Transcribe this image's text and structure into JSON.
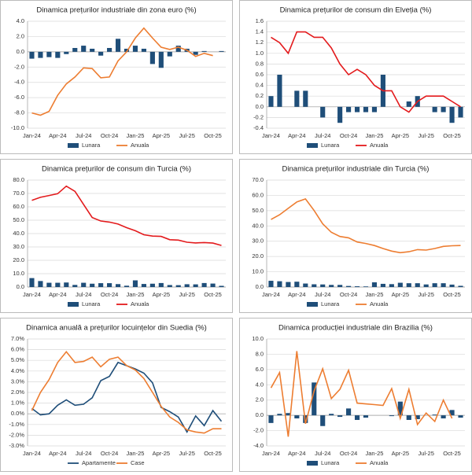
{
  "chart_data": [
    {
      "type": "combo",
      "title": "Dinamica prețurilor industriale din zona euro (%)",
      "categories": [
        "Jan-24",
        null,
        null,
        "Apr-24",
        null,
        null,
        "Jul-24",
        null,
        null,
        "Oct-24",
        null,
        null,
        "Jan-25",
        null,
        null,
        "Apr-25",
        null,
        null,
        "Jul-25",
        null,
        null,
        "Oct-25",
        null
      ],
      "series": [
        {
          "name": "Lunara",
          "kind": "bar",
          "color": "#1f4e79",
          "values": [
            -0.9,
            -0.8,
            -0.7,
            -0.8,
            -0.3,
            0.5,
            0.8,
            0.4,
            -0.5,
            0.5,
            1.7,
            0.4,
            0.8,
            0.4,
            -1.6,
            -2.1,
            -0.6,
            0.8,
            0.4,
            -0.4,
            0.1,
            0.0,
            0.1
          ]
        },
        {
          "name": "Anuala",
          "kind": "line",
          "color": "#ed7d31",
          "values": [
            -8.0,
            -8.3,
            -7.8,
            -5.7,
            -4.2,
            -3.3,
            -2.1,
            -2.2,
            -3.4,
            -3.3,
            -1.2,
            0.0,
            1.8,
            3.1,
            1.8,
            0.6,
            0.3,
            0.6,
            0.2,
            -0.6,
            -0.2,
            -0.5,
            null
          ]
        }
      ],
      "ylim": [
        -10,
        4
      ],
      "yticks": [
        {
          "value": -10,
          "label": "-10.0"
        },
        {
          "value": -8,
          "label": "-8.0"
        },
        {
          "value": -6,
          "label": "-6.0"
        },
        {
          "value": -4,
          "label": "-4.0"
        },
        {
          "value": -2,
          "label": "-2.0"
        },
        {
          "value": 0,
          "label": "0.0"
        },
        {
          "value": 2,
          "label": "2.0"
        },
        {
          "value": 4,
          "label": "4.0"
        }
      ],
      "grid": true,
      "legend": "bottom"
    },
    {
      "type": "combo",
      "title": "Dinamica prețurilor de consum din Elveția (%)",
      "categories": [
        "Jan-24",
        null,
        null,
        "Apr-24",
        null,
        null,
        "Jul-24",
        null,
        null,
        "Oct-24",
        null,
        null,
        "Jan-25",
        null,
        null,
        "Apr-25",
        null,
        null,
        "Jul-25",
        null,
        null,
        "Oct-25",
        null
      ],
      "series": [
        {
          "name": "Lunara",
          "kind": "bar",
          "color": "#1f4e79",
          "values": [
            0.2,
            0.6,
            0.0,
            0.3,
            0.3,
            0.0,
            -0.2,
            0.0,
            -0.3,
            -0.1,
            -0.1,
            -0.1,
            -0.1,
            0.6,
            0.0,
            0.0,
            0.1,
            0.2,
            0.0,
            -0.1,
            -0.1,
            -0.3,
            -0.2
          ]
        },
        {
          "name": "Anuala",
          "kind": "line",
          "color": "#e31a1c",
          "values": [
            1.3,
            1.2,
            1.0,
            1.4,
            1.4,
            1.3,
            1.3,
            1.1,
            0.8,
            0.6,
            0.7,
            0.6,
            0.4,
            0.3,
            0.3,
            0.0,
            -0.1,
            0.1,
            0.2,
            0.2,
            0.2,
            0.1,
            0.0
          ]
        }
      ],
      "ylim": [
        -0.4,
        1.6
      ],
      "yticks": [
        {
          "value": -0.4,
          "label": "-0.4"
        },
        {
          "value": -0.2,
          "label": "-0.2"
        },
        {
          "value": 0,
          "label": "0.0"
        },
        0.2,
        0.4,
        0.6,
        0.8,
        {
          "value": 1,
          "label": "1.0"
        },
        1.2,
        1.4,
        1.6
      ],
      "grid": true,
      "legend": "bottom"
    },
    {
      "type": "combo",
      "title": "Dinamica prețurilor de consum din Turcia (%)",
      "categories": [
        "Jan-24",
        null,
        null,
        "Apr-24",
        null,
        null,
        "Jul-24",
        null,
        null,
        "Oct-24",
        null,
        null,
        "Jan-25",
        null,
        null,
        "Apr-25",
        null,
        null,
        "Jul-25",
        null,
        null,
        "Oct-25",
        null
      ],
      "series": [
        {
          "name": "Lunara",
          "kind": "bar",
          "color": "#1f4e79",
          "values": [
            6.7,
            4.5,
            3.2,
            3.2,
            3.4,
            1.6,
            3.2,
            2.5,
            2.9,
            2.9,
            2.2,
            1.0,
            5.0,
            2.3,
            2.5,
            3.0,
            1.5,
            1.4,
            2.1,
            2.0,
            3.0,
            2.6,
            0.9
          ]
        },
        {
          "name": "Anuala",
          "kind": "line",
          "color": "#e31a1c",
          "values": [
            64.9,
            67.1,
            68.5,
            69.8,
            75.5,
            71.6,
            61.8,
            52.0,
            49.4,
            48.6,
            47.1,
            44.4,
            42.1,
            39.1,
            38.1,
            37.9,
            35.4,
            35.1,
            33.5,
            33.0,
            33.3,
            32.9,
            31.1
          ]
        }
      ],
      "ylim": [
        0,
        80
      ],
      "yticks": [
        {
          "value": 0,
          "label": "0.0"
        },
        {
          "value": 10,
          "label": "10.0"
        },
        {
          "value": 20,
          "label": "20.0"
        },
        {
          "value": 30,
          "label": "30.0"
        },
        {
          "value": 40,
          "label": "40.0"
        },
        {
          "value": 50,
          "label": "50.0"
        },
        {
          "value": 60,
          "label": "60.0"
        },
        {
          "value": 70,
          "label": "70.0"
        },
        {
          "value": 80,
          "label": "80.0"
        }
      ],
      "grid": true,
      "legend": "bottom"
    },
    {
      "type": "combo",
      "title": "Dinamica prețurilor industriale din Turcia (%)",
      "categories": [
        "Jan-24",
        null,
        null,
        "Apr-24",
        null,
        null,
        "Jul-24",
        null,
        null,
        "Oct-24",
        null,
        null,
        "Jan-25",
        null,
        null,
        "Apr-25",
        null,
        null,
        "Jul-25",
        null,
        null,
        "Oct-25",
        null
      ],
      "series": [
        {
          "name": "Lunara",
          "kind": "bar",
          "color": "#1f4e79",
          "values": [
            4.1,
            3.8,
            3.3,
            3.5,
            2.3,
            1.8,
            1.7,
            1.4,
            1.4,
            0.7,
            0.5,
            0.4,
            3.1,
            2.1,
            1.9,
            2.8,
            2.5,
            2.5,
            1.7,
            2.5,
            2.5,
            1.6,
            0.8
          ]
        },
        {
          "name": "Anuala",
          "kind": "line",
          "color": "#ed7d31",
          "values": [
            44.2,
            47.3,
            51.5,
            55.7,
            57.7,
            50.1,
            41.4,
            35.8,
            33.1,
            32.2,
            29.5,
            28.5,
            27.2,
            25.2,
            23.5,
            22.5,
            23.1,
            24.5,
            24.2,
            25.2,
            26.6,
            27.0,
            27.2
          ]
        }
      ],
      "ylim": [
        0,
        70
      ],
      "yticks": [
        {
          "value": 0,
          "label": "0.0"
        },
        {
          "value": 10,
          "label": "10.0"
        },
        {
          "value": 20,
          "label": "20.0"
        },
        {
          "value": 30,
          "label": "30.0"
        },
        {
          "value": 40,
          "label": "40.0"
        },
        {
          "value": 50,
          "label": "50.0"
        },
        {
          "value": 60,
          "label": "60.0"
        },
        {
          "value": 70,
          "label": "70.0"
        }
      ],
      "grid": true,
      "legend": "bottom"
    },
    {
      "type": "line",
      "title": "Dinamica anuală a prețurilor locuințelor din Suedia (%)",
      "categories": [
        "Jan-24",
        null,
        null,
        "Apr-24",
        null,
        null,
        "Jul-24",
        null,
        null,
        "Oct-24",
        null,
        null,
        "Jan-25",
        null,
        null,
        "Apr-25",
        null,
        null,
        "Jul-25",
        null,
        null,
        "Oct-25",
        null
      ],
      "series": [
        {
          "name": "Apartamente",
          "kind": "line",
          "color": "#1f4e79",
          "values": [
            0.5,
            -0.1,
            0.0,
            0.8,
            1.3,
            0.8,
            0.9,
            1.5,
            3.1,
            3.5,
            4.8,
            4.5,
            4.2,
            3.8,
            2.9,
            0.6,
            0.2,
            -0.3,
            -1.7,
            -0.2,
            -1.1,
            0.3,
            -0.7
          ]
        },
        {
          "name": "Case",
          "kind": "line",
          "color": "#ed7d31",
          "values": [
            0.3,
            2.0,
            3.2,
            4.8,
            5.8,
            4.8,
            4.9,
            5.3,
            4.4,
            5.1,
            5.3,
            4.5,
            4.1,
            3.3,
            2.0,
            0.7,
            -0.3,
            -0.8,
            -1.5,
            -1.7,
            -1.8,
            -1.4,
            -1.4
          ]
        }
      ],
      "ylim": [
        -3,
        7
      ],
      "yticks": [
        {
          "value": -3,
          "label": "-3.0%"
        },
        {
          "value": -2,
          "label": "-2.0%"
        },
        {
          "value": -1,
          "label": "-1.0%"
        },
        {
          "value": 0,
          "label": "0.0%"
        },
        {
          "value": 1,
          "label": "1.0%"
        },
        {
          "value": 2,
          "label": "2.0%"
        },
        {
          "value": 3,
          "label": "3.0%"
        },
        {
          "value": 4,
          "label": "4.0%"
        },
        {
          "value": 5,
          "label": "5.0%"
        },
        {
          "value": 6,
          "label": "6.0%"
        },
        {
          "value": 7,
          "label": "7.0%"
        }
      ],
      "grid": true,
      "legend": "bottom"
    },
    {
      "type": "combo",
      "title": "Dinamica producției industriale din Brazilia (%)",
      "categories": [
        "Jan-24",
        null,
        null,
        "Apr-24",
        null,
        null,
        "Jul-24",
        null,
        null,
        "Oct-24",
        null,
        null,
        "Jan-25",
        null,
        null,
        "Apr-25",
        null,
        null,
        "Jul-25",
        null,
        null,
        "Oct-25",
        null
      ],
      "series": [
        {
          "name": "Lunara",
          "kind": "bar",
          "color": "#1f4e79",
          "values": [
            -1.0,
            0.2,
            0.3,
            -0.4,
            -1.0,
            4.3,
            -1.4,
            0.2,
            -0.2,
            0.9,
            -0.6,
            -0.3,
            0.0,
            0.0,
            -0.1,
            1.8,
            -0.6,
            -0.5,
            0.0,
            0.1,
            -0.4,
            0.7,
            -0.3
          ]
        },
        {
          "name": "Anuala",
          "kind": "line",
          "color": "#ed7d31",
          "values": [
            3.6,
            5.6,
            -2.8,
            8.4,
            -1.1,
            3.2,
            6.1,
            2.2,
            3.4,
            5.9,
            1.6,
            1.5,
            1.4,
            1.3,
            3.5,
            -0.4,
            3.4,
            -1.2,
            0.3,
            -0.8,
            2.0,
            -0.4,
            null
          ]
        }
      ],
      "ylim": [
        -4,
        10
      ],
      "yticks": [
        {
          "value": -4,
          "label": "-4.0"
        },
        {
          "value": -2,
          "label": "-2.0"
        },
        {
          "value": 0,
          "label": "0.0"
        },
        {
          "value": 2,
          "label": "2.0"
        },
        {
          "value": 4,
          "label": "4.0"
        },
        {
          "value": 6,
          "label": "6.0"
        },
        {
          "value": 8,
          "label": "8.0"
        },
        {
          "value": 10,
          "label": "10.0"
        }
      ],
      "grid": true,
      "legend": "bottom"
    }
  ]
}
